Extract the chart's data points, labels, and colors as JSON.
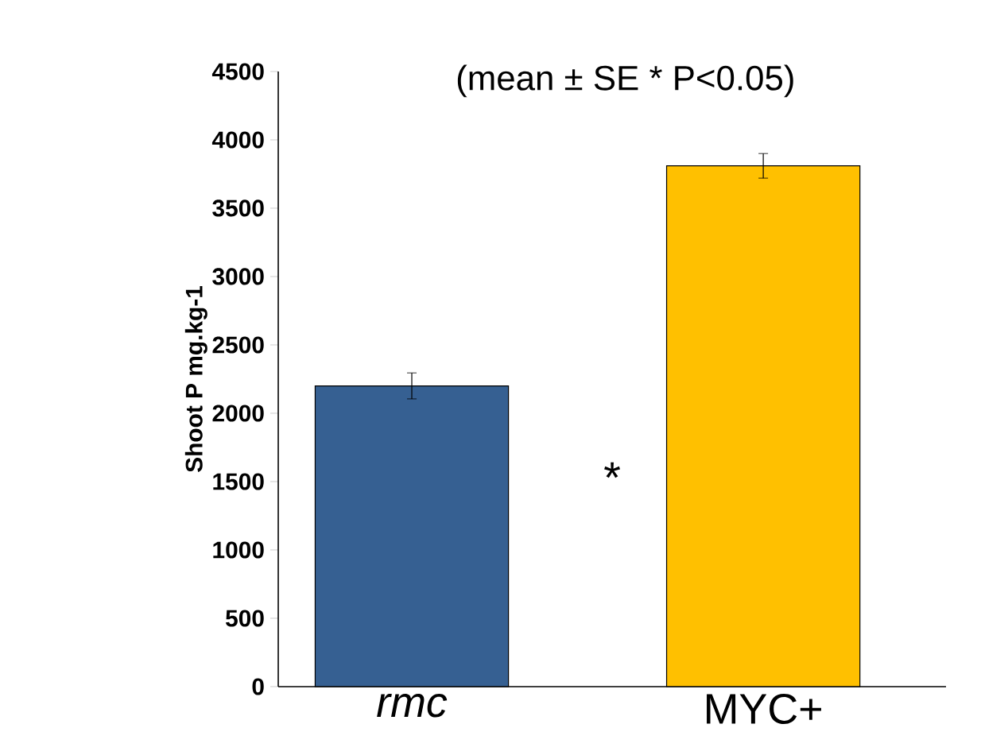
{
  "chart_data": {
    "type": "bar",
    "ylabel": "Shoot P mg.kg-1",
    "categories": [
      "rmc",
      "MYC+"
    ],
    "values": [
      2200,
      3810
    ],
    "colors": [
      "#366092",
      "#ffc000"
    ],
    "errors": [
      95,
      90
    ],
    "ylim": [
      0,
      4500
    ],
    "yticks": [
      0,
      500,
      1000,
      1500,
      2000,
      2500,
      3000,
      3500,
      4000,
      4500
    ],
    "annotations": [
      "(mean ± SE * P<0.05)",
      "*"
    ]
  }
}
